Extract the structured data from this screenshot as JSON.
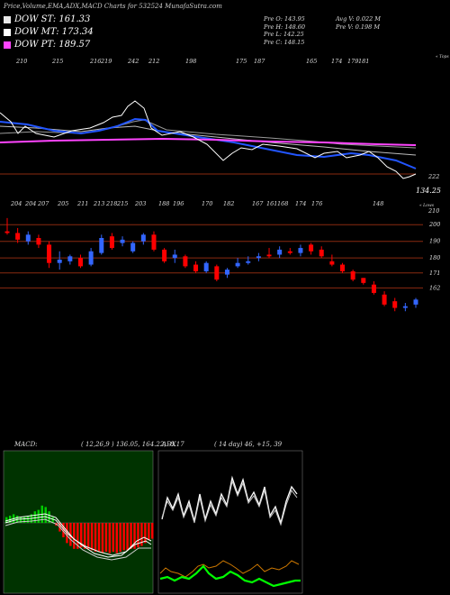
{
  "header": {
    "title": "Price,Volume,EMA,ADX,MACD Charts for 532524  MunafaSutra.com"
  },
  "legend": [
    {
      "label": "DOW ST: 161.33",
      "color": "#e8e8e8"
    },
    {
      "label": "DOW MT: 173.34",
      "color": "#ffffff"
    },
    {
      "label": "DOW PT: 189.57",
      "color": "#ff44ff"
    }
  ],
  "info": {
    "col1": [
      "Pre  O: 143.95",
      "Pre  H: 148.60",
      "Pre  L: 142.25",
      "Pre  C: 148.15"
    ],
    "col2": [
      "Avg V: 0.022  M",
      "Pre  V: 0.198  M"
    ]
  },
  "colors": {
    "up": "#3366ff",
    "down": "#ff0000",
    "ema_blue": "#2255ff",
    "ema_magenta": "#ff44ff",
    "level": "#8a2a10",
    "macd_bg": "#003300",
    "macd_green": "#00cc00",
    "adx_green": "#00ff00",
    "adx_orange": "#cc7700"
  },
  "upper_panel": {
    "top_labels": [
      "210",
      "215",
      "216",
      "219",
      "242",
      "212",
      "198",
      "175",
      "187",
      "165",
      "174",
      "179",
      "181"
    ],
    "right_top_label": "« Tops",
    "right_values": [
      "222",
      "134.25",
      "210"
    ]
  },
  "candle_panel": {
    "top_labels": [
      "204",
      "204",
      "207",
      "205",
      "211",
      "213",
      "218",
      "215",
      "203",
      "188",
      "196",
      "170",
      "182",
      "167",
      "161",
      "168",
      "174",
      "176",
      "148"
    ],
    "right_lows_label": "« Lows",
    "levels": [
      "200",
      "190",
      "180",
      "171",
      "162"
    ]
  },
  "macd": {
    "title": "MACD:",
    "values": "( 12,26,9 ) 136.05,  164.22, -8.17"
  },
  "adx": {
    "title": "ADX",
    "values": "( 14  day) 46,  +15,  39"
  },
  "chart_data": {
    "type": "candlestick",
    "title": "Price,Volume,EMA,ADX,MACD Charts for 532524",
    "candles": [
      {
        "o": 196,
        "h": 204,
        "l": 194,
        "c": 195
      },
      {
        "o": 195,
        "h": 198,
        "l": 189,
        "c": 191
      },
      {
        "o": 190,
        "h": 196,
        "l": 188,
        "c": 194
      },
      {
        "o": 192,
        "h": 194,
        "l": 186,
        "c": 188
      },
      {
        "o": 188,
        "h": 190,
        "l": 174,
        "c": 177
      },
      {
        "o": 177,
        "h": 184,
        "l": 173,
        "c": 179
      },
      {
        "o": 178,
        "h": 182,
        "l": 176,
        "c": 181
      },
      {
        "o": 180,
        "h": 182,
        "l": 174,
        "c": 175
      },
      {
        "o": 176,
        "h": 186,
        "l": 175,
        "c": 184
      },
      {
        "o": 183,
        "h": 194,
        "l": 182,
        "c": 192
      },
      {
        "o": 193,
        "h": 195,
        "l": 185,
        "c": 186
      },
      {
        "o": 189,
        "h": 193,
        "l": 187,
        "c": 191
      },
      {
        "o": 184,
        "h": 190,
        "l": 183,
        "c": 189
      },
      {
        "o": 190,
        "h": 195,
        "l": 188,
        "c": 194
      },
      {
        "o": 194,
        "h": 196,
        "l": 184,
        "c": 185
      },
      {
        "o": 185,
        "h": 186,
        "l": 177,
        "c": 178
      },
      {
        "o": 180,
        "h": 185,
        "l": 177,
        "c": 182
      },
      {
        "o": 181,
        "h": 182,
        "l": 174,
        "c": 175
      },
      {
        "o": 176,
        "h": 178,
        "l": 171,
        "c": 172
      },
      {
        "o": 172,
        "h": 178,
        "l": 171,
        "c": 177
      },
      {
        "o": 175,
        "h": 176,
        "l": 166,
        "c": 167
      },
      {
        "o": 170,
        "h": 174,
        "l": 168,
        "c": 173
      },
      {
        "o": 175,
        "h": 180,
        "l": 174,
        "c": 177
      },
      {
        "o": 177,
        "h": 181,
        "l": 176,
        "c": 178
      },
      {
        "o": 180,
        "h": 183,
        "l": 178,
        "c": 181
      },
      {
        "o": 182,
        "h": 186,
        "l": 180,
        "c": 181
      },
      {
        "o": 182,
        "h": 187,
        "l": 180,
        "c": 185
      },
      {
        "o": 184,
        "h": 186,
        "l": 182,
        "c": 183
      },
      {
        "o": 183,
        "h": 188,
        "l": 181,
        "c": 186
      },
      {
        "o": 188,
        "h": 189,
        "l": 182,
        "c": 184
      },
      {
        "o": 185,
        "h": 187,
        "l": 180,
        "c": 181
      },
      {
        "o": 178,
        "h": 182,
        "l": 175,
        "c": 176
      },
      {
        "o": 176,
        "h": 177,
        "l": 171,
        "c": 172
      },
      {
        "o": 172,
        "h": 173,
        "l": 166,
        "c": 167
      },
      {
        "o": 168,
        "h": 168,
        "l": 164,
        "c": 165
      },
      {
        "o": 164,
        "h": 166,
        "l": 158,
        "c": 159
      },
      {
        "o": 158,
        "h": 160,
        "l": 151,
        "c": 152
      },
      {
        "o": 154,
        "h": 156,
        "l": 148,
        "c": 150
      },
      {
        "o": 150,
        "h": 153,
        "l": 148,
        "c": 151
      },
      {
        "o": 152,
        "h": 156,
        "l": 150,
        "c": 155
      }
    ],
    "ylim": [
      140,
      205
    ],
    "levels": [
      200,
      190,
      180,
      171,
      162
    ]
  }
}
